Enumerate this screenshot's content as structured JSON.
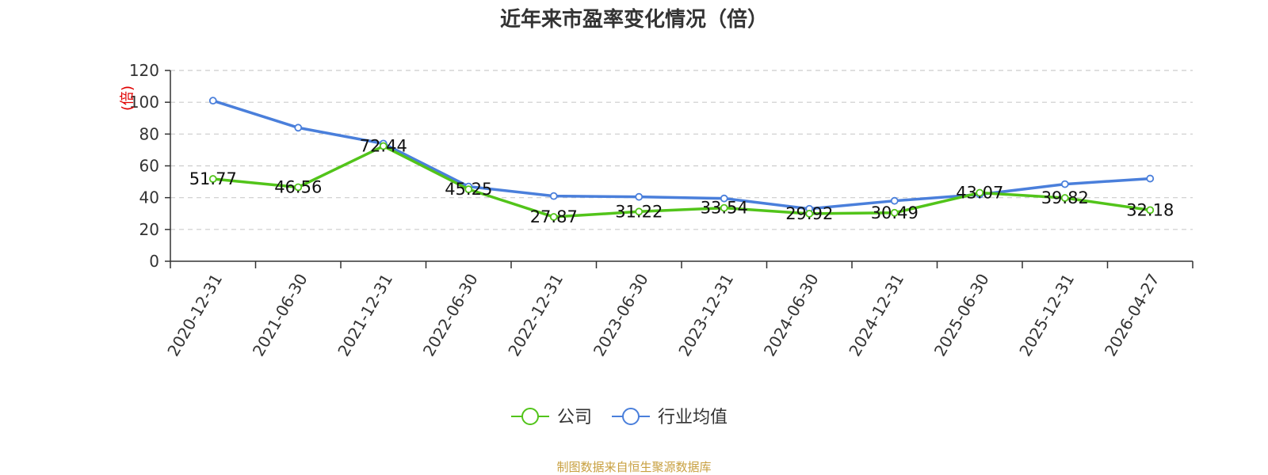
{
  "title": "近年来市盈率变化情况（倍）",
  "source": "制图数据来自恒生聚源数据库",
  "colors": {
    "company": "#52c41a",
    "industry": "#4a7fdb",
    "grid": "#cccccc",
    "axis": "#333333",
    "ylabel": "#e00000"
  },
  "chart_data": {
    "type": "line",
    "title": "近年来市盈率变化情况（倍）",
    "ylabel": "(倍)",
    "ylim": [
      0,
      120
    ],
    "yticks": [
      0,
      20,
      40,
      60,
      80,
      100,
      120
    ],
    "grid": true,
    "legend_position": "bottom",
    "categories": [
      "2020-12-31",
      "2021-06-30",
      "2021-12-31",
      "2022-06-30",
      "2022-12-31",
      "2023-06-30",
      "2023-12-31",
      "2024-06-30",
      "2024-12-31",
      "2025-06-30",
      "2025-12-31",
      "2026-04-27"
    ],
    "series": [
      {
        "name": "公司",
        "values": [
          51.77,
          46.56,
          72.44,
          45.25,
          27.87,
          31.22,
          33.54,
          29.92,
          30.49,
          43.07,
          39.82,
          32.18
        ],
        "labels": [
          "51.77",
          "46.56",
          "72.44",
          "45.25",
          "27.87",
          "31.22",
          "33.54",
          "29.92",
          "30.49",
          "43.07",
          "39.82",
          "32.18"
        ]
      },
      {
        "name": "行业均值",
        "values": [
          101,
          84,
          74,
          47,
          41,
          40.5,
          39.5,
          33,
          38,
          42,
          48.5,
          52
        ]
      }
    ]
  }
}
